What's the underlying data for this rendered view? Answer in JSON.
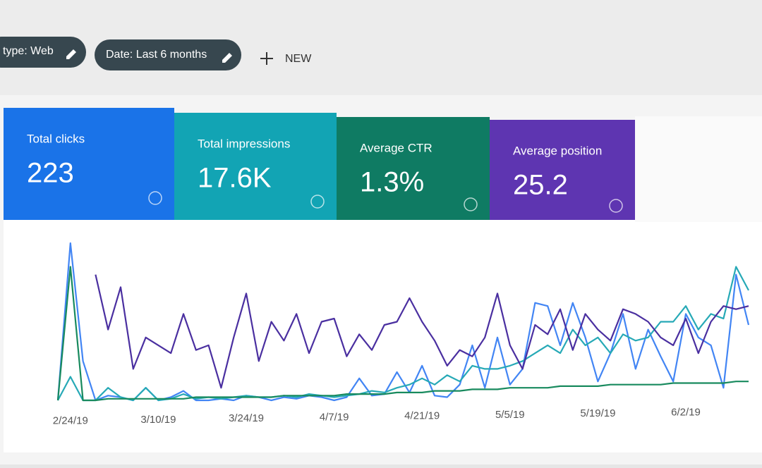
{
  "filters": [
    "type: Web",
    "Date: Last 6 months"
  ],
  "new_button": "NEW",
  "chart_data": {
    "type": "line",
    "categories": [
      null,
      "2/24/19",
      null,
      null,
      null,
      null,
      null,
      null,
      "3/10/19",
      null,
      null,
      null,
      null,
      null,
      null,
      "3/24/19",
      null,
      null,
      null,
      null,
      null,
      null,
      "4/7/19",
      null,
      null,
      null,
      null,
      null,
      null,
      "4/21/19",
      null,
      null,
      null,
      null,
      null,
      null,
      "5/5/19",
      null,
      null,
      null,
      null,
      null,
      null,
      "5/19/19",
      null,
      null,
      null,
      null,
      null,
      null,
      "6/2/19",
      null,
      null,
      null,
      null,
      null
    ],
    "ylim": [
      0,
      100
    ],
    "series": [
      {
        "name": "Total clicks",
        "total": "223",
        "color": "#4285f4",
        "card_color": "#1a73e8",
        "values": [
          0,
          100,
          25,
          0,
          3,
          2,
          0,
          8,
          0,
          2,
          6,
          0,
          0,
          1,
          0,
          3,
          2,
          0,
          2,
          1,
          3,
          2,
          0,
          2,
          14,
          3,
          4,
          18,
          5,
          22,
          3,
          2,
          10,
          35,
          8,
          40,
          10,
          20,
          62,
          60,
          35,
          62,
          40,
          12,
          30,
          55,
          20,
          45,
          28,
          12,
          55,
          40,
          35,
          8,
          80,
          48
        ]
      },
      {
        "name": "Total impressions",
        "total": "17.6K",
        "color": "#26a9b6",
        "card_color": "#12a4b4",
        "values": [
          0,
          15,
          0,
          0,
          8,
          2,
          0,
          8,
          0,
          1,
          4,
          1,
          2,
          1,
          2,
          3,
          2,
          2,
          3,
          2,
          4,
          3,
          2,
          3,
          4,
          6,
          5,
          8,
          10,
          14,
          10,
          16,
          12,
          22,
          20,
          20,
          22,
          25,
          30,
          35,
          30,
          45,
          35,
          40,
          30,
          42,
          38,
          40,
          50,
          50,
          60,
          45,
          55,
          52,
          85,
          70
        ]
      },
      {
        "name": "Average CTR",
        "total": "1.3%",
        "color": "#188a5e",
        "card_color": "#0f7b63",
        "values": [
          0,
          85,
          0,
          0,
          1,
          1,
          1,
          1,
          1,
          1,
          1,
          2,
          2,
          2,
          2,
          2,
          2,
          2,
          3,
          3,
          3,
          3,
          3,
          4,
          4,
          4,
          4,
          5,
          5,
          5,
          6,
          6,
          6,
          7,
          7,
          7,
          8,
          8,
          8,
          8,
          9,
          9,
          9,
          9,
          10,
          10,
          10,
          10,
          10,
          11,
          11,
          11,
          11,
          11,
          12,
          12
        ]
      },
      {
        "name": "Average position",
        "total": "25.2",
        "color": "#4a2fa0",
        "card_color": "#5e35b1",
        "values": [
          null,
          null,
          null,
          80,
          45,
          72,
          20,
          40,
          35,
          30,
          55,
          32,
          35,
          8,
          40,
          68,
          25,
          50,
          38,
          55,
          30,
          50,
          52,
          28,
          42,
          32,
          48,
          50,
          65,
          50,
          38,
          22,
          32,
          28,
          40,
          68,
          35,
          20,
          48,
          42,
          58,
          32,
          55,
          45,
          38,
          58,
          55,
          50,
          40,
          35,
          52,
          30,
          50,
          60,
          58,
          60
        ]
      }
    ]
  }
}
